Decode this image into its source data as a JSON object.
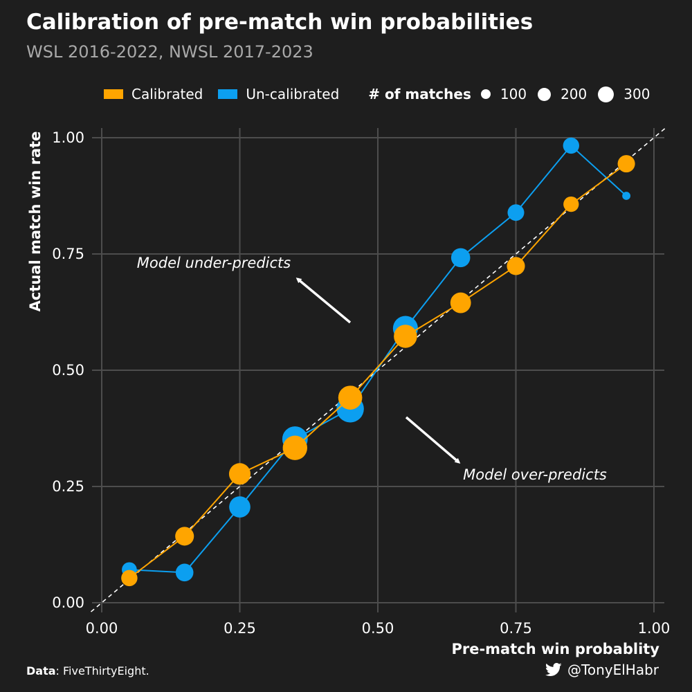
{
  "header": {
    "title": "Calibration of pre-match win probabilities",
    "subtitle": "WSL 2016-2022, NWSL 2017-2023"
  },
  "legend": {
    "size_title": "# of matches",
    "size_labels": [
      "100",
      "200",
      "300"
    ]
  },
  "annotations": {
    "under": "Model under-predicts",
    "over": "Model over-predicts"
  },
  "footer": {
    "data_label": "Data",
    "data_source": ": FiveThirtyEight.",
    "handle": "@TonyElHabr",
    "handle_icon": "twitter-bird-icon"
  },
  "colors": {
    "background": "#1e1e1e",
    "calibrated": "#ffa500",
    "uncalibrated": "#0c9ff0",
    "grid": "#4d4d4d",
    "reference_line": "#ffffff",
    "text": "#ffffff",
    "subtitle": "#a9a9a9"
  },
  "chart_data": {
    "type": "line",
    "xlabel": "Pre-match win probablity",
    "ylabel": "Actual match win rate",
    "xlim": [
      0,
      1
    ],
    "ylim": [
      0,
      1
    ],
    "x_ticks": [
      "0.00",
      "0.25",
      "0.50",
      "0.75",
      "1.00"
    ],
    "y_ticks": [
      "0.00",
      "0.25",
      "0.50",
      "0.75",
      "1.00"
    ],
    "grid": true,
    "reference_line": "y = x (dashed)",
    "legend_position": "top",
    "series": [
      {
        "name": "Calibrated",
        "x": [
          0.05,
          0.15,
          0.25,
          0.35,
          0.45,
          0.55,
          0.65,
          0.75,
          0.85,
          0.95
        ],
        "y": [
          0.053,
          0.143,
          0.277,
          0.333,
          0.441,
          0.573,
          0.645,
          0.724,
          0.857,
          0.944
        ],
        "n": [
          95,
          130,
          175,
          230,
          220,
          205,
          160,
          120,
          85,
          110
        ]
      },
      {
        "name": "Un-calibrated",
        "x": [
          0.05,
          0.15,
          0.25,
          0.35,
          0.45,
          0.55,
          0.65,
          0.75,
          0.85,
          0.95
        ],
        "y": [
          0.071,
          0.065,
          0.206,
          0.352,
          0.417,
          0.59,
          0.742,
          0.839,
          0.983,
          0.875
        ],
        "n": [
          80,
          115,
          170,
          250,
          290,
          240,
          135,
          100,
          95,
          20
        ]
      }
    ]
  }
}
